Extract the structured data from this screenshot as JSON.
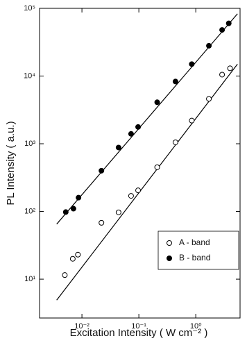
{
  "chart_data": {
    "type": "scatter",
    "xlabel": "Excitation Intensity ( W cm⁻² )",
    "ylabel": "PL Intensity ( a.u.)",
    "log_x": true,
    "log_y": true,
    "xlim": [
      0.0018,
      6.0
    ],
    "ylim": [
      2.67,
      100000
    ],
    "xticks": [
      {
        "value": 0.01,
        "label": "10⁻²"
      },
      {
        "value": 0.1,
        "label": "10⁻¹"
      },
      {
        "value": 1,
        "label": "10⁰"
      }
    ],
    "yticks": [
      {
        "value": 10,
        "label": "10¹"
      },
      {
        "value": 100,
        "label": "10²"
      },
      {
        "value": 1000,
        "label": "10³"
      },
      {
        "value": 10000,
        "label": "10⁴"
      },
      {
        "value": 100000,
        "label": "10⁵"
      }
    ],
    "legend": "lower right",
    "series": [
      {
        "name": "A - band",
        "color": "#000000",
        "marker": "open",
        "x": [
          0.005,
          0.0069,
          0.0085,
          0.022,
          0.044,
          0.073,
          0.097,
          0.21,
          0.44,
          0.85,
          1.7,
          2.9,
          4.0
        ],
        "values": [
          11.5,
          20,
          23,
          68,
          97,
          170,
          205,
          450,
          1050,
          2200,
          4600,
          10500,
          13000
        ]
      },
      {
        "name": "B - band",
        "color": "#000000",
        "marker": "filled",
        "x": [
          0.0052,
          0.0071,
          0.0087,
          0.022,
          0.044,
          0.073,
          0.097,
          0.21,
          0.44,
          0.85,
          1.7,
          2.9,
          3.8
        ],
        "values": [
          98,
          110,
          160,
          400,
          880,
          1400,
          1770,
          4100,
          8300,
          15000,
          28000,
          48000,
          60000
        ]
      }
    ],
    "fits": [
      {
        "x": [
          0.0036,
          5.4
        ],
        "y": [
          4.9,
          15000
        ]
      },
      {
        "x": [
          0.0036,
          5.4
        ],
        "y": [
          65,
          83000
        ]
      }
    ]
  }
}
